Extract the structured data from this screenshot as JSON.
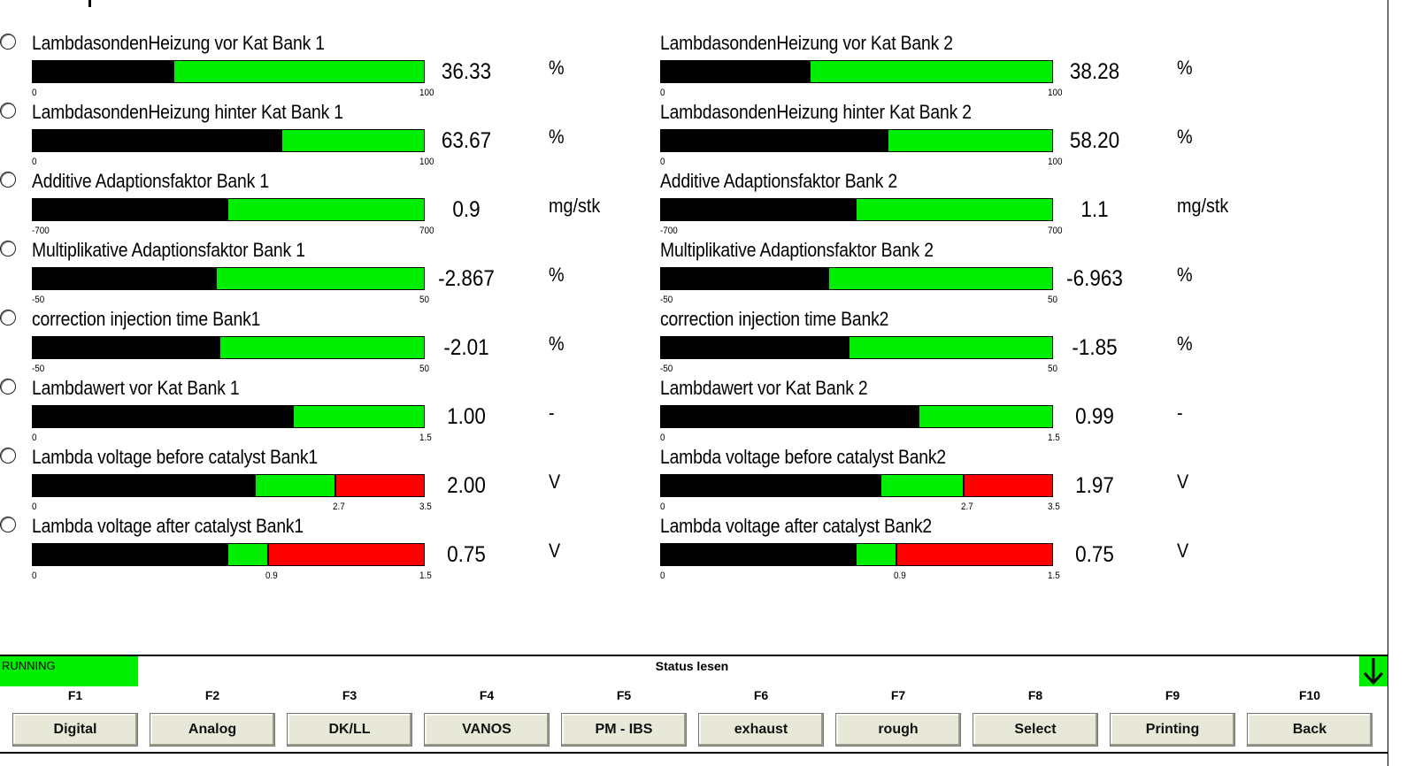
{
  "gauges": [
    {
      "label": "LambdasondenHeizung vor Kat Bank 1",
      "value": "36.33",
      "unit": "%",
      "min_label": "0",
      "max_label": "100",
      "fill_fraction": 0.363,
      "mid_label": "",
      "red_from_fraction": null
    },
    {
      "label": "LambdasondenHeizung vor Kat Bank 2",
      "value": "38.28",
      "unit": "%",
      "min_label": "0",
      "max_label": "100",
      "fill_fraction": 0.383,
      "mid_label": "",
      "red_from_fraction": null
    },
    {
      "label": "LambdasondenHeizung hinter Kat Bank 1",
      "value": "63.67",
      "unit": "%",
      "min_label": "0",
      "max_label": "100",
      "fill_fraction": 0.637,
      "mid_label": "",
      "red_from_fraction": null
    },
    {
      "label": "LambdasondenHeizung hinter Kat Bank 2",
      "value": "58.20",
      "unit": "%",
      "min_label": "0",
      "max_label": "100",
      "fill_fraction": 0.582,
      "mid_label": "",
      "red_from_fraction": null
    },
    {
      "label": "Additive Adaptionsfaktor Bank 1",
      "value": "0.9",
      "unit": "mg/stk",
      "min_label": "-700",
      "max_label": "700",
      "fill_fraction": 0.501,
      "mid_label": "",
      "red_from_fraction": null
    },
    {
      "label": "Additive Adaptionsfaktor Bank 2",
      "value": "1.1",
      "unit": "mg/stk",
      "min_label": "-700",
      "max_label": "700",
      "fill_fraction": 0.501,
      "mid_label": "",
      "red_from_fraction": null
    },
    {
      "label": "Multiplikative Adaptionsfaktor Bank 1",
      "value": "-2.867",
      "unit": "%",
      "min_label": "-50",
      "max_label": "50",
      "fill_fraction": 0.471,
      "mid_label": "",
      "red_from_fraction": null
    },
    {
      "label": "Multiplikative Adaptionsfaktor Bank 2",
      "value": "-6.963",
      "unit": "%",
      "min_label": "-50",
      "max_label": "50",
      "fill_fraction": 0.43,
      "mid_label": "",
      "red_from_fraction": null
    },
    {
      "label": "correction injection time Bank1",
      "value": "-2.01",
      "unit": "%",
      "min_label": "-50",
      "max_label": "50",
      "fill_fraction": 0.48,
      "mid_label": "",
      "red_from_fraction": null
    },
    {
      "label": "correction injection time Bank2",
      "value": "-1.85",
      "unit": "%",
      "min_label": "-50",
      "max_label": "50",
      "fill_fraction": 0.482,
      "mid_label": "",
      "red_from_fraction": null
    },
    {
      "label": "Lambdawert vor Kat Bank 1",
      "value": "1.00",
      "unit": "-",
      "min_label": "0",
      "max_label": "1.5",
      "fill_fraction": 0.667,
      "mid_label": "",
      "red_from_fraction": null
    },
    {
      "label": "Lambdawert vor Kat Bank 2",
      "value": "0.99",
      "unit": "-",
      "min_label": "0",
      "max_label": "1.5",
      "fill_fraction": 0.66,
      "mid_label": "",
      "red_from_fraction": null
    },
    {
      "label": "Lambda voltage before catalyst Bank1",
      "value": "2.00",
      "unit": "V",
      "min_label": "0",
      "max_label": "3.5",
      "fill_fraction": 0.571,
      "mid_label": "2.7",
      "red_from_fraction": 0.771
    },
    {
      "label": "Lambda voltage before catalyst Bank2",
      "value": "1.97",
      "unit": "V",
      "min_label": "0",
      "max_label": "3.5",
      "fill_fraction": 0.563,
      "mid_label": "2.7",
      "red_from_fraction": 0.771
    },
    {
      "label": "Lambda voltage after catalyst Bank1",
      "value": "0.75",
      "unit": "V",
      "min_label": "0",
      "max_label": "1.5",
      "fill_fraction": 0.5,
      "mid_label": "0.9",
      "red_from_fraction": 0.6
    },
    {
      "label": "Lambda voltage after catalyst Bank2",
      "value": "0.75",
      "unit": "V",
      "min_label": "0",
      "max_label": "1.5",
      "fill_fraction": 0.5,
      "mid_label": "0.9",
      "red_from_fraction": 0.6
    }
  ],
  "status": {
    "state": "RUNNING",
    "title": "Status lesen",
    "state_color": "#00ee00"
  },
  "function_keys": [
    {
      "key": "F1",
      "label": "Digital"
    },
    {
      "key": "F2",
      "label": "Analog"
    },
    {
      "key": "F3",
      "label": "DK/LL"
    },
    {
      "key": "F4",
      "label": "VANOS"
    },
    {
      "key": "F5",
      "label": "PM - IBS"
    },
    {
      "key": "F6",
      "label": "exhaust"
    },
    {
      "key": "F7",
      "label": "rough"
    },
    {
      "key": "F8",
      "label": "Select"
    },
    {
      "key": "F9",
      "label": "Printing"
    },
    {
      "key": "F10",
      "label": "Back"
    }
  ],
  "icons": {
    "scroll": "arrow-down-icon",
    "radio": "radio-button-icon"
  }
}
